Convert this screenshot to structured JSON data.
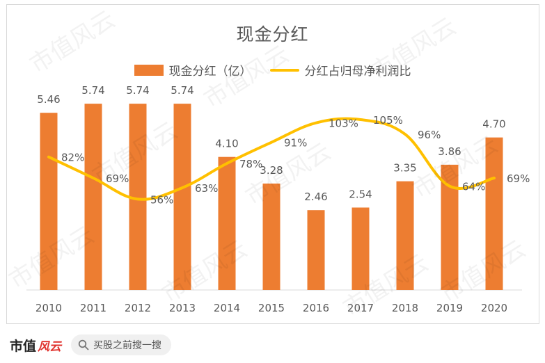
{
  "colors": {
    "bar": "#ED7D31",
    "line": "#FFC000",
    "text": "#595959",
    "axis": "#d9d9d9"
  },
  "footer": {
    "logo_main": "市值",
    "logo_accent": "风云",
    "search_placeholder": "买股之前搜一搜",
    "search_icon": "search-icon"
  },
  "watermark": "市值风云",
  "chart_data": {
    "type": "bar+line",
    "title": "现金分红",
    "categories": [
      "2010",
      "2011",
      "2012",
      "2013",
      "2014",
      "2015",
      "2016",
      "2017",
      "2018",
      "2019",
      "2020"
    ],
    "series": [
      {
        "name": "现金分红（亿）",
        "type": "bar",
        "values": [
          5.46,
          5.74,
          5.74,
          5.74,
          4.1,
          3.28,
          2.46,
          2.54,
          3.35,
          3.86,
          4.7
        ],
        "labels": [
          "5.46",
          "5.74",
          "5.74",
          "5.74",
          "4.10",
          "3.28",
          "2.46",
          "2.54",
          "3.35",
          "3.86",
          "4.70"
        ]
      },
      {
        "name": "分红占归母净利润比",
        "type": "line",
        "values": [
          82,
          69,
          56,
          63,
          78,
          91,
          103,
          105,
          96,
          64,
          69
        ],
        "labels": [
          "82%",
          "69%",
          "56%",
          "63%",
          "78%",
          "91%",
          "103%",
          "105%",
          "96%",
          "64%",
          "69%"
        ]
      }
    ],
    "ylim_bar": [
      0,
      6
    ],
    "ylim_line": [
      0,
      120
    ],
    "legend": "top",
    "grid": false
  }
}
